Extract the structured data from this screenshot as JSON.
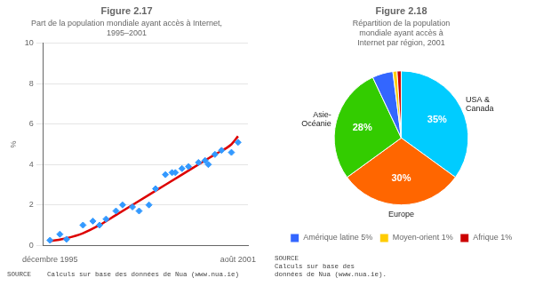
{
  "chart_data": [
    {
      "type": "scatter",
      "title": "Figure 2.17",
      "subtitle": [
        "Part de la population mondiale ayant accès à Internet,",
        "1995–2001"
      ],
      "source": "SOURCE    Calculs sur base des données de Nua (www.nua.ie)",
      "ylabel": "%",
      "xlim": [
        -0.2,
        6.0
      ],
      "xticks": [
        {
          "value": 0,
          "label": "décembre 1995"
        },
        {
          "value": 5.7,
          "label": "août 2001"
        }
      ],
      "ylim": [
        0,
        10
      ],
      "yticks": [
        0,
        2,
        4,
        6,
        8,
        10
      ],
      "grid": true,
      "series": [
        {
          "type": "scatter",
          "color": "#3399ff",
          "marker": "diamond",
          "x": [
            0.0,
            0.3,
            0.5,
            1.0,
            1.3,
            1.5,
            1.7,
            2.0,
            2.2,
            2.5,
            2.7,
            3.0,
            3.2,
            3.5,
            3.7,
            3.8,
            4.0,
            4.2,
            4.5,
            4.7,
            4.8,
            5.0,
            5.2,
            5.5,
            5.7
          ],
          "values": [
            0.25,
            0.55,
            0.3,
            1.0,
            1.2,
            1.0,
            1.3,
            1.7,
            2.0,
            1.9,
            1.7,
            2.0,
            2.8,
            3.5,
            3.6,
            3.6,
            3.8,
            3.9,
            4.1,
            4.2,
            4.0,
            4.5,
            4.7,
            4.6,
            5.1
          ]
        },
        {
          "type": "line",
          "color": "#dd0000",
          "line_style": "solid",
          "x": [
            0.0,
            0.5,
            1.0,
            1.5,
            2.0,
            2.5,
            3.0,
            3.5,
            4.0,
            4.5,
            5.0,
            5.5,
            5.7
          ],
          "values": [
            0.2,
            0.35,
            0.6,
            1.0,
            1.5,
            2.0,
            2.5,
            3.0,
            3.5,
            4.0,
            4.5,
            5.0,
            5.4
          ]
        }
      ]
    },
    {
      "type": "pie",
      "title": "Figure 2.18",
      "subtitle": [
        "Répartition de la population",
        "mondiale ayant accès à",
        "Internet par région, 2001"
      ],
      "source": "SOURCE\nCalculs sur base des\ndonnées de Nua (www.nua.ie).",
      "categories": [
        "USA &\nCanada",
        "Europe",
        "Asie-\nOcéanie",
        "Amérique latine 5%",
        "Moyen-orient 1%",
        "Afrique 1%"
      ],
      "values": [
        35,
        30,
        28,
        5,
        1,
        1
      ],
      "colors": [
        "#00ccff",
        "#ff6600",
        "#33cc00",
        "#3366ff",
        "#ffcc00",
        "#cc0000"
      ],
      "value_labels": [
        "35%",
        "30%",
        "28%",
        null,
        null,
        null
      ],
      "data_labels": true,
      "legend": "bottom"
    }
  ]
}
